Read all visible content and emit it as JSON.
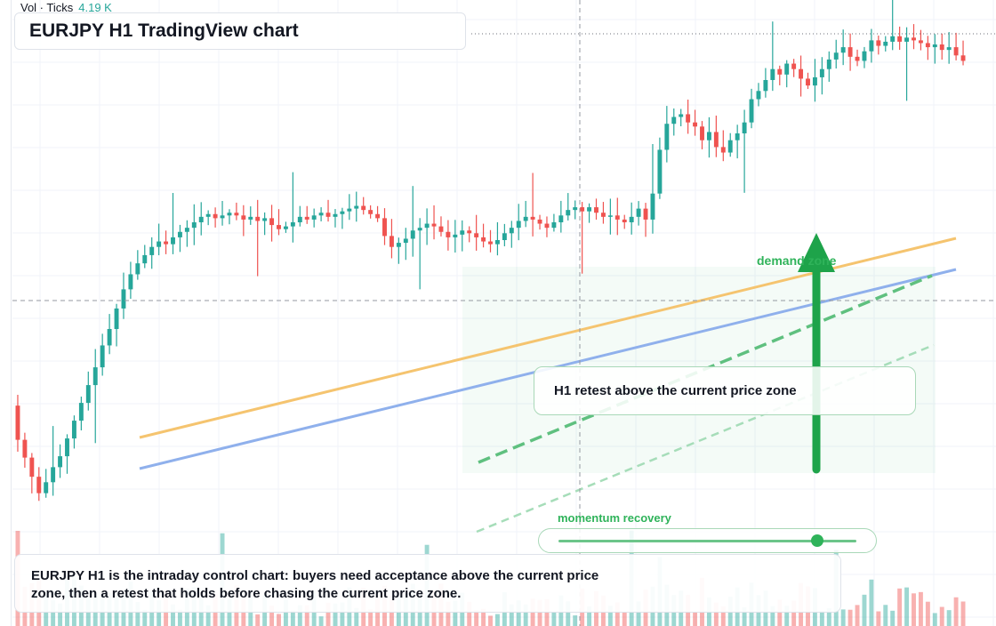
{
  "title": "EURJPY H1 TradingView chart",
  "volume": {
    "label": "Vol · Ticks",
    "value": "4.19 K"
  },
  "callout": {
    "text": "H1 retest above the current price zone"
  },
  "zone": {
    "label": "demand zone"
  },
  "momentum": {
    "label": "momentum recovery",
    "level": 0.87
  },
  "note": {
    "text": "EURJPY H1 is the intraday control chart: buyers need acceptance above the current price zone, then a retest that holds before chasing the current price zone."
  },
  "colors": {
    "up": "#26a69a",
    "down": "#ef5350",
    "accent": "#2fb35a",
    "trend_orange": "#f5c46f",
    "trend_blue": "#8fb0ec"
  },
  "chart_data": {
    "type": "candlestick",
    "symbol": "EURJPY",
    "timeframe": "H1",
    "close": [
      100.5,
      99.2,
      97.8,
      96.6,
      97.4,
      98.5,
      99.3,
      100.6,
      101.9,
      103.2,
      104.5,
      105.8,
      107.4,
      108.6,
      110.1,
      111.5,
      112.6,
      113.4,
      114.0,
      114.6,
      115.0,
      114.8,
      115.3,
      115.7,
      116.0,
      116.4,
      116.8,
      117.0,
      116.7,
      116.9,
      117.1,
      116.9,
      116.6,
      116.8,
      116.5,
      116.7,
      116.2,
      115.9,
      116.1,
      116.4,
      116.8,
      116.6,
      116.9,
      117.1,
      116.8,
      117.0,
      117.2,
      117.4,
      117.6,
      117.3,
      117.0,
      116.7,
      115.4,
      114.6,
      114.9,
      115.2,
      115.8,
      116.0,
      116.3,
      116.1,
      115.7,
      115.3,
      115.5,
      115.8,
      115.6,
      115.3,
      115.0,
      114.8,
      115.1,
      115.6,
      116.0,
      116.5,
      116.8,
      116.6,
      116.3,
      116.0,
      116.4,
      116.9,
      117.3,
      117.5,
      117.2,
      117.5,
      117.1,
      116.8,
      116.9,
      116.6,
      116.4,
      116.8,
      117.4,
      116.6,
      118.5,
      121.7,
      123.6,
      124.1,
      124.3,
      123.7,
      123.4,
      122.4,
      123.0,
      121.9,
      121.5,
      122.4,
      122.9,
      123.7,
      125.4,
      126.0,
      126.8,
      127.6,
      127.2,
      128.0,
      127.6,
      126.9,
      126.4,
      127.0,
      127.6,
      128.3,
      128.8,
      129.2,
      128.5,
      128.2,
      128.9,
      129.7,
      129.3,
      129.6,
      130.0,
      129.6,
      129.9,
      129.7,
      129.5,
      129.2,
      129.4,
      129.0,
      129.2,
      128.6,
      128.2
    ],
    "open": 103.0,
    "volume_units": "K ticks",
    "last_volume": 4.19,
    "price_range": [
      93.0,
      132.0
    ],
    "grid": true
  }
}
